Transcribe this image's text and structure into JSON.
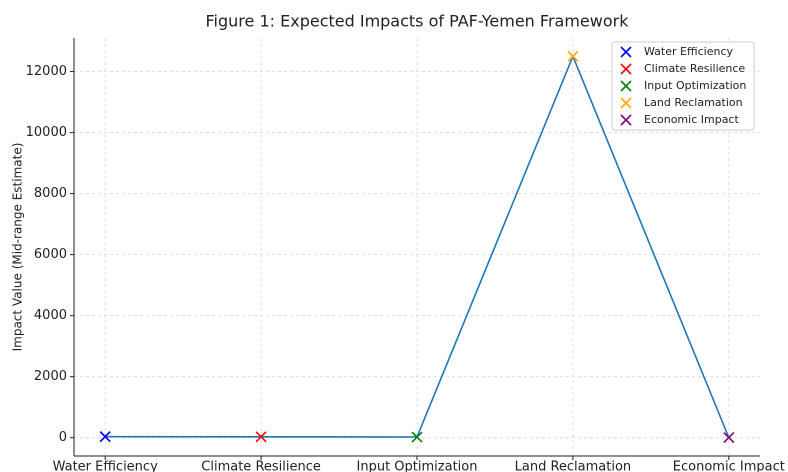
{
  "chart_data": {
    "type": "line",
    "title": "Figure 1: Expected Impacts of PAF-Yemen Framework",
    "y_label": "Impact Value (Mid-range Estimate)",
    "categories": [
      "Water Efficiency",
      "Climate Resilience",
      "Input Optimization",
      "Land Reclamation",
      "Economic Impact"
    ],
    "values": [
      35,
      30,
      22.5,
      12500,
      2.5
    ],
    "color": "#1f77b4",
    "marker_colors": [
      "#0000ff",
      "#ff0000",
      "#008000",
      "#ffa500",
      "#800080"
    ],
    "ylim": [
      -600,
      13100
    ],
    "yticks": [
      0,
      2000,
      4000,
      6000,
      8000,
      10000,
      12000
    ],
    "grid": true,
    "legend": "upper right"
  }
}
